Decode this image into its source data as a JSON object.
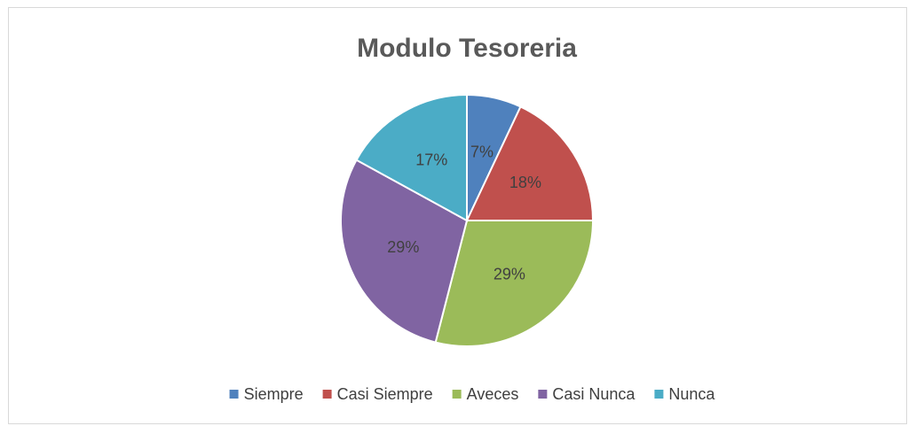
{
  "chart_data": {
    "type": "pie",
    "title": "Modulo Tesoreria",
    "categories": [
      "Siempre",
      "Casi Siempre",
      "Aveces",
      "Casi Nunca",
      "Nunca"
    ],
    "values": [
      7,
      18,
      29,
      29,
      17
    ],
    "value_labels": [
      "7%",
      "18%",
      "29%",
      "29%",
      "17%"
    ],
    "colors": [
      "#4f81bd",
      "#c0504d",
      "#9bbb59",
      "#8064a2",
      "#4bacc6"
    ],
    "legend": "bottom"
  }
}
